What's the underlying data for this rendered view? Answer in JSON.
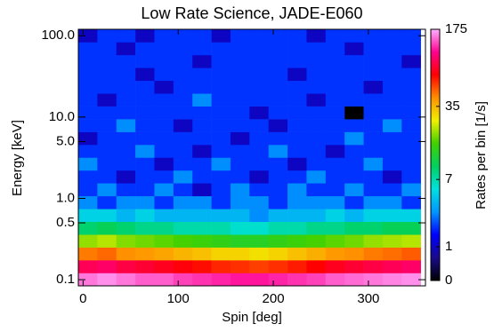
{
  "chart_data": {
    "type": "heatmap",
    "title": "Low Rate Science, JADE-E060",
    "x_label": "Spin [deg]",
    "y_label": "Energy [keV]",
    "colorbar_label": "Rates per bin [1/s]",
    "xlim": [
      -5,
      360
    ],
    "xticks": [
      0,
      100,
      200,
      300
    ],
    "ylim": [
      0.084,
      120
    ],
    "y_scale": "log",
    "yticks": [
      {
        "value": 0.1,
        "label": "0.1"
      },
      {
        "value": 0.5,
        "label": "0.5"
      },
      {
        "value": 1,
        "label": "1.0"
      },
      {
        "value": 5,
        "label": "5.0"
      },
      {
        "value": 10,
        "label": "10.0"
      },
      {
        "value": 100,
        "label": "100.0"
      }
    ],
    "zlim": [
      0,
      175
    ],
    "zticks": [
      0,
      1,
      7,
      35,
      175
    ],
    "colormap": [
      "#000000",
      "#1a0a8c",
      "#0000ff",
      "#0096ff",
      "#00e0e0",
      "#00d060",
      "#40d000",
      "#f0f000",
      "#ff9000",
      "#ff0000",
      "#ff0090",
      "#ffb0ff"
    ],
    "x_bins": [
      -5,
      15,
      35,
      55,
      75,
      95,
      115,
      135,
      155,
      175,
      195,
      215,
      235,
      255,
      275,
      295,
      315,
      335,
      355
    ],
    "y_bins": [
      0.084,
      0.121,
      0.174,
      0.25,
      0.359,
      0.517,
      0.743,
      1.07,
      1.54,
      2.21,
      3.18,
      4.57,
      6.57,
      9.45,
      13.6,
      19.5,
      28.1,
      40.4,
      58.1,
      83.5,
      120
    ],
    "z": [
      [
        150,
        160,
        150,
        140,
        140,
        130,
        125,
        120,
        115,
        115,
        120,
        125,
        130,
        140,
        145,
        150,
        155,
        160
      ],
      [
        90,
        95,
        85,
        80,
        75,
        70,
        65,
        60,
        58,
        55,
        58,
        62,
        68,
        75,
        80,
        85,
        90,
        95
      ],
      [
        45,
        48,
        42,
        40,
        38,
        35,
        33,
        30,
        30,
        28,
        30,
        33,
        36,
        40,
        42,
        45,
        47,
        50
      ],
      [
        20,
        22,
        19,
        18,
        17,
        16,
        15,
        14,
        13,
        13,
        14,
        15,
        16,
        17,
        18,
        20,
        21,
        22
      ],
      [
        9,
        10,
        9,
        8,
        8,
        7,
        7,
        7,
        6,
        6,
        7,
        7,
        8,
        8,
        9,
        9,
        10,
        10
      ],
      [
        5,
        5,
        4,
        5,
        4,
        4,
        4,
        4,
        4,
        3,
        4,
        4,
        4,
        5,
        4,
        5,
        5,
        5
      ],
      [
        3,
        2,
        3,
        3,
        2,
        3,
        3,
        2,
        3,
        3,
        2,
        3,
        3,
        3,
        2,
        3,
        3,
        2
      ],
      [
        2,
        3,
        2,
        2,
        3,
        2,
        1,
        2,
        3,
        2,
        2,
        3,
        2,
        2,
        3,
        2,
        2,
        3
      ],
      [
        2,
        2,
        1,
        2,
        2,
        3,
        2,
        2,
        2,
        1,
        2,
        2,
        3,
        2,
        2,
        2,
        1,
        2
      ],
      [
        3,
        2,
        2,
        2,
        1,
        2,
        2,
        3,
        2,
        2,
        2,
        1,
        2,
        2,
        2,
        3,
        2,
        2
      ],
      [
        2,
        2,
        2,
        3,
        2,
        2,
        1,
        2,
        2,
        2,
        3,
        2,
        2,
        1,
        2,
        2,
        2,
        2
      ],
      [
        1,
        2,
        2,
        2,
        2,
        2,
        2,
        2,
        1,
        2,
        2,
        2,
        2,
        2,
        3,
        2,
        2,
        2
      ],
      [
        2,
        2,
        3,
        2,
        2,
        1,
        2,
        2,
        2,
        2,
        1,
        2,
        2,
        2,
        2,
        2,
        3,
        2
      ],
      [
        2,
        2,
        2,
        2,
        2,
        2,
        2,
        2,
        2,
        1,
        2,
        2,
        2,
        2,
        0,
        2,
        2,
        2
      ],
      [
        2,
        1,
        2,
        2,
        2,
        2,
        3,
        2,
        2,
        2,
        2,
        2,
        1,
        2,
        2,
        2,
        2,
        2
      ],
      [
        2,
        2,
        2,
        2,
        1,
        2,
        2,
        2,
        2,
        2,
        2,
        2,
        2,
        2,
        2,
        1,
        2,
        2
      ],
      [
        2,
        2,
        2,
        1,
        2,
        2,
        2,
        2,
        2,
        2,
        2,
        1,
        2,
        2,
        2,
        2,
        2,
        2
      ],
      [
        2,
        2,
        2,
        2,
        2,
        2,
        1,
        2,
        2,
        2,
        2,
        2,
        2,
        2,
        2,
        2,
        2,
        1
      ],
      [
        2,
        2,
        1,
        2,
        2,
        2,
        2,
        2,
        2,
        2,
        2,
        2,
        2,
        2,
        1,
        2,
        2,
        2
      ],
      [
        1,
        2,
        2,
        1,
        2,
        2,
        2,
        1,
        2,
        2,
        2,
        2,
        1,
        2,
        2,
        2,
        2,
        2
      ]
    ]
  }
}
